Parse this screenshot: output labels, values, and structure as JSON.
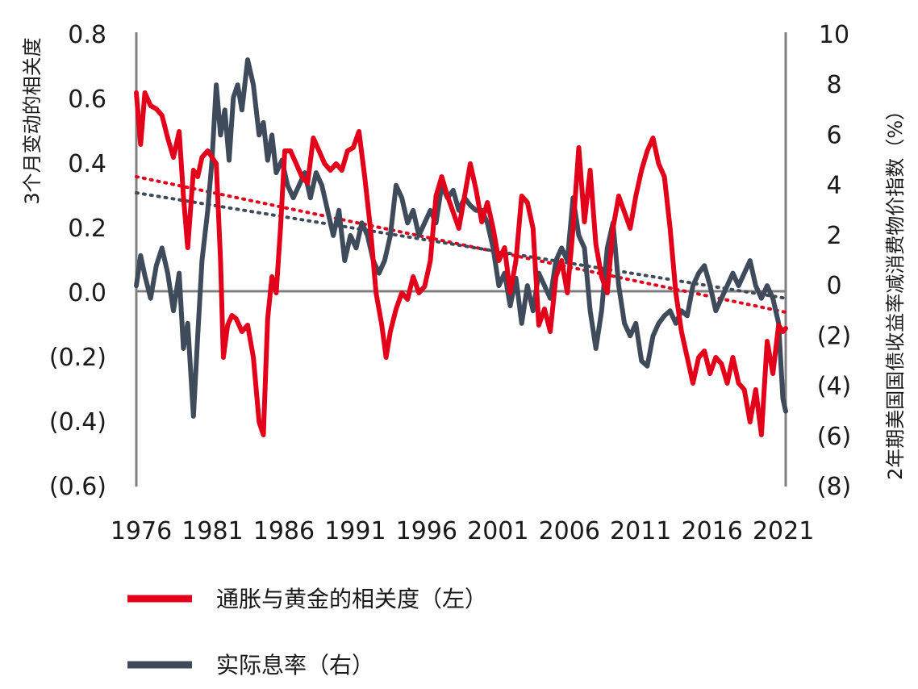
{
  "chart_data": {
    "type": "line",
    "title": "",
    "x_ticks": [
      "1976",
      "1981",
      "1986",
      "1991",
      "1996",
      "2001",
      "2006",
      "2011",
      "2016",
      "2021"
    ],
    "xlim": [
      1976,
      2021.5
    ],
    "y_left": {
      "label": "3个月变动的相关度",
      "ticks": [
        "0.8",
        "0.6",
        "0.4",
        "0.2",
        "0.0",
        "(0.2)",
        "(0.4)",
        "(0.6)"
      ],
      "ylim": [
        -0.6,
        0.8
      ]
    },
    "y_right": {
      "label": "2年期美国国债收益率减消费物价指数（%）",
      "ticks": [
        "10",
        "8",
        "6",
        "4",
        "2",
        "0",
        "(2)",
        "(4)",
        "(6)",
        "(8)"
      ],
      "ylim": [
        -8,
        10
      ]
    },
    "colors": {
      "red": "#e2001a",
      "navy": "#3f4b5a",
      "axis": "#7f7f7f",
      "zero": "#7f7f7f"
    },
    "legend": [
      {
        "name": "通胀与黄金的相关度（左）",
        "color": "#e2001a"
      },
      {
        "name": "实际息率（右）",
        "color": "#3f4b5a"
      }
    ],
    "series": [
      {
        "name": "通胀与黄金的相关度（左）",
        "axis": "left",
        "x": [
          1976.0,
          1976.3,
          1976.6,
          1977.0,
          1977.4,
          1977.8,
          1978.2,
          1978.6,
          1979.0,
          1979.3,
          1979.6,
          1980.0,
          1980.3,
          1980.6,
          1981.0,
          1981.3,
          1981.6,
          1981.9,
          1982.1,
          1982.4,
          1982.7,
          1983.0,
          1983.4,
          1983.8,
          1984.2,
          1984.6,
          1984.9,
          1985.2,
          1985.5,
          1985.8,
          1986.1,
          1986.4,
          1986.8,
          1987.2,
          1987.6,
          1988.0,
          1988.4,
          1988.8,
          1989.2,
          1989.6,
          1990.0,
          1990.4,
          1990.8,
          1991.2,
          1991.6,
          1992.0,
          1992.4,
          1992.8,
          1993.2,
          1993.5,
          1993.8,
          1994.2,
          1994.6,
          1995.0,
          1995.4,
          1995.8,
          1996.2,
          1996.6,
          1997.0,
          1997.4,
          1997.8,
          1998.2,
          1998.6,
          1999.0,
          1999.4,
          1999.8,
          2000.2,
          2000.6,
          2001.0,
          2001.4,
          2001.8,
          2002.2,
          2002.6,
          2003.0,
          2003.4,
          2003.8,
          2004.2,
          2004.6,
          2005.0,
          2005.4,
          2005.8,
          2006.2,
          2006.6,
          2007.0,
          2007.4,
          2007.8,
          2008.2,
          2008.6,
          2009.0,
          2009.4,
          2009.8,
          2010.2,
          2010.6,
          2011.0,
          2011.4,
          2011.8,
          2012.2,
          2012.6,
          2013.0,
          2013.4,
          2013.8,
          2014.2,
          2014.6,
          2015.0,
          2015.4,
          2015.8,
          2016.2,
          2016.6,
          2017.0,
          2017.4,
          2017.8,
          2018.2,
          2018.6,
          2019.0,
          2019.4,
          2019.8,
          2020.2,
          2020.6,
          2021.0,
          2021.3,
          2021.5
        ],
        "values": [
          0.62,
          0.46,
          0.62,
          0.58,
          0.57,
          0.55,
          0.48,
          0.42,
          0.5,
          0.3,
          0.14,
          0.38,
          0.36,
          0.42,
          0.44,
          0.42,
          0.4,
          0.1,
          -0.2,
          -0.1,
          -0.07,
          -0.08,
          -0.12,
          -0.1,
          -0.2,
          -0.4,
          -0.44,
          -0.08,
          0.05,
          0.0,
          0.2,
          0.44,
          0.44,
          0.4,
          0.36,
          0.34,
          0.48,
          0.44,
          0.4,
          0.38,
          0.4,
          0.38,
          0.44,
          0.45,
          0.5,
          0.36,
          0.2,
          0.0,
          -0.1,
          -0.2,
          -0.12,
          -0.05,
          0.0,
          -0.02,
          0.05,
          0.0,
          0.02,
          0.1,
          0.3,
          0.36,
          0.3,
          0.25,
          0.2,
          0.3,
          0.4,
          0.32,
          0.22,
          0.28,
          0.2,
          0.1,
          0.14,
          0.0,
          0.1,
          0.3,
          0.28,
          0.2,
          -0.1,
          -0.05,
          -0.12,
          0.05,
          0.1,
          0.0,
          0.2,
          0.45,
          0.22,
          0.38,
          0.15,
          0.05,
          0.0,
          0.2,
          0.3,
          0.25,
          0.2,
          0.3,
          0.38,
          0.44,
          0.48,
          0.4,
          0.36,
          0.2,
          0.0,
          -0.12,
          -0.2,
          -0.28,
          -0.2,
          -0.18,
          -0.25,
          -0.2,
          -0.22,
          -0.28,
          -0.2,
          -0.28,
          -0.3,
          -0.4,
          -0.3,
          -0.44,
          -0.15,
          -0.25,
          -0.1,
          -0.12,
          -0.11
        ]
      },
      {
        "name": "实际息率（右）",
        "axis": "right",
        "x": [
          1976.0,
          1976.3,
          1976.6,
          1977.0,
          1977.4,
          1977.8,
          1978.2,
          1978.6,
          1979.0,
          1979.3,
          1979.6,
          1980.0,
          1980.3,
          1980.6,
          1981.0,
          1981.3,
          1981.6,
          1981.9,
          1982.2,
          1982.5,
          1982.8,
          1983.1,
          1983.4,
          1983.8,
          1984.2,
          1984.6,
          1984.9,
          1985.2,
          1985.5,
          1985.8,
          1986.2,
          1986.6,
          1987.0,
          1987.4,
          1987.8,
          1988.2,
          1988.6,
          1989.0,
          1989.4,
          1989.8,
          1990.2,
          1990.6,
          1991.0,
          1991.4,
          1991.8,
          1992.2,
          1992.6,
          1993.0,
          1993.4,
          1993.8,
          1994.2,
          1994.6,
          1995.0,
          1995.4,
          1995.8,
          1996.2,
          1996.6,
          1997.0,
          1997.4,
          1997.8,
          1998.2,
          1998.6,
          1999.0,
          1999.4,
          1999.8,
          2000.2,
          2000.6,
          2001.0,
          2001.4,
          2001.8,
          2002.2,
          2002.6,
          2003.0,
          2003.4,
          2003.8,
          2004.2,
          2004.6,
          2005.0,
          2005.4,
          2005.8,
          2006.2,
          2006.6,
          2007.0,
          2007.4,
          2007.8,
          2008.2,
          2008.6,
          2009.0,
          2009.4,
          2009.8,
          2010.2,
          2010.6,
          2011.0,
          2011.4,
          2011.8,
          2012.2,
          2012.6,
          2013.0,
          2013.4,
          2013.8,
          2014.2,
          2014.6,
          2015.0,
          2015.4,
          2015.8,
          2016.2,
          2016.6,
          2017.0,
          2017.4,
          2017.8,
          2018.2,
          2018.6,
          2019.0,
          2019.4,
          2019.8,
          2020.2,
          2020.6,
          2021.0,
          2021.3,
          2021.5
        ],
        "values": [
          0.0,
          1.2,
          0.4,
          -0.5,
          0.8,
          1.5,
          0.5,
          -1.0,
          0.5,
          -2.5,
          -1.5,
          -5.2,
          -2.0,
          1.0,
          3.0,
          5.0,
          8.0,
          6.0,
          7.0,
          5.0,
          7.5,
          8.0,
          7.0,
          9.0,
          8.0,
          6.0,
          6.5,
          5.0,
          6.0,
          4.5,
          5.0,
          4.0,
          3.5,
          4.0,
          4.5,
          3.5,
          4.5,
          4.0,
          3.0,
          2.0,
          3.0,
          1.0,
          2.0,
          1.5,
          2.5,
          2.0,
          1.0,
          0.5,
          1.0,
          2.0,
          4.0,
          3.5,
          2.5,
          3.0,
          2.0,
          2.5,
          3.0,
          2.5,
          4.0,
          3.5,
          3.8,
          3.0,
          3.5,
          3.2,
          3.0,
          3.0,
          2.5,
          1.5,
          0.0,
          0.5,
          -0.8,
          0.3,
          -1.5,
          0.0,
          -1.0,
          0.5,
          0.0,
          -0.5,
          1.0,
          1.5,
          1.0,
          3.5,
          2.0,
          1.5,
          -1.0,
          -2.5,
          -1.0,
          1.5,
          2.5,
          0.0,
          -1.5,
          -2.0,
          -1.5,
          -3.0,
          -3.2,
          -2.0,
          -1.5,
          -1.2,
          -1.0,
          -1.5,
          -1.0,
          -1.2,
          0.0,
          0.5,
          0.8,
          0.0,
          -1.0,
          -0.5,
          0.0,
          0.5,
          0.0,
          0.5,
          1.0,
          0.0,
          -0.5,
          0.0,
          -0.5,
          -1.5,
          -4.5,
          -5.0
        ]
      }
    ],
    "trendlines": [
      {
        "series": "通胀与黄金的相关度（左）",
        "axis": "left",
        "style": "dotted",
        "x": [
          1976.0,
          2021.5
        ],
        "values": [
          0.36,
          -0.06
        ]
      },
      {
        "series": "实际息率（右）",
        "axis": "right",
        "style": "dotted",
        "x": [
          1976.0,
          2021.5
        ],
        "values": [
          3.7,
          -0.5
        ]
      }
    ]
  }
}
